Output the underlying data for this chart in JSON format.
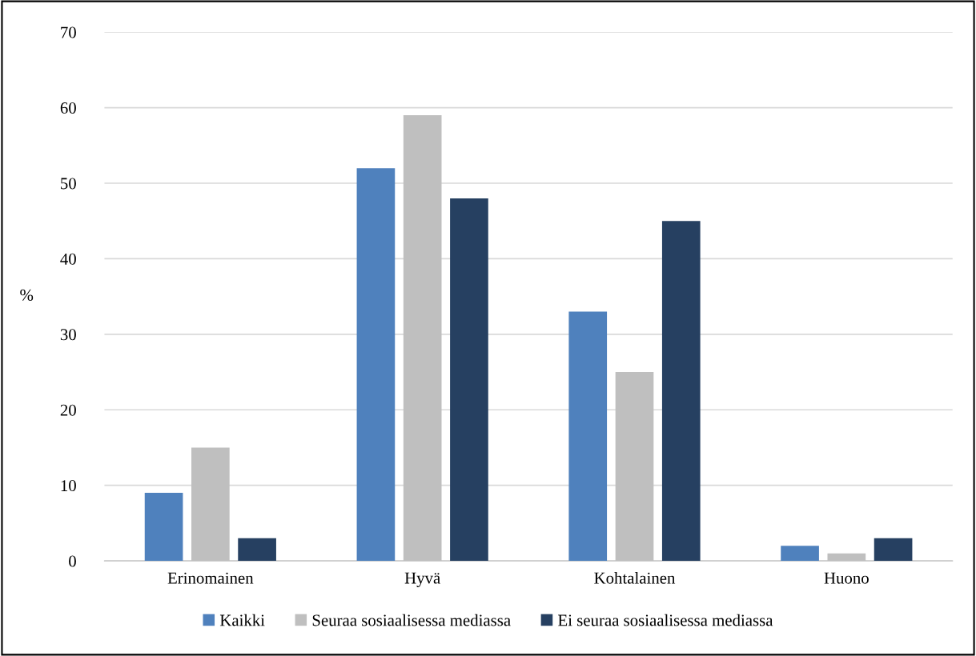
{
  "chart_data": {
    "type": "bar",
    "ylabel": "%",
    "categories": [
      "Erinomainen",
      "Hyvä",
      "Kohtalainen",
      "Huono"
    ],
    "series": [
      {
        "name": "Kaikki",
        "color": "#4f81bd",
        "values": [
          9,
          52,
          33,
          2
        ]
      },
      {
        "name": "Seuraa sosiaalisessa mediassa",
        "color": "#bfbfbf",
        "values": [
          15,
          59,
          25,
          1
        ]
      },
      {
        "name": "Ei seuraa sosiaalisessa mediassa",
        "color": "#264061",
        "values": [
          3,
          48,
          45,
          3
        ]
      }
    ],
    "ylim": [
      0,
      70
    ],
    "yticks": [
      0,
      10,
      20,
      30,
      40,
      50,
      60,
      70
    ],
    "grid": "y",
    "legend": "bottom"
  }
}
